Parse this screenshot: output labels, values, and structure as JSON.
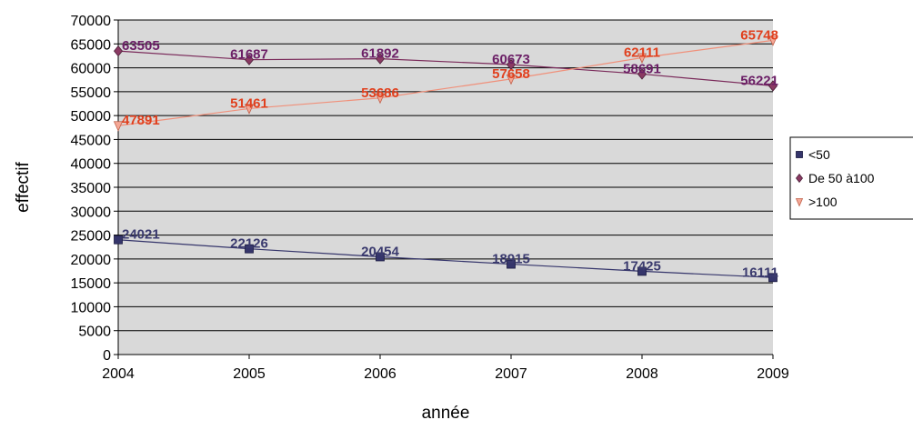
{
  "chart_data": {
    "type": "line",
    "title": "",
    "xlabel": "année",
    "ylabel": "effectif",
    "x": [
      2004,
      2005,
      2006,
      2007,
      2008,
      2009
    ],
    "ylim": [
      0,
      70000
    ],
    "ytick_step": 5000,
    "grid": true,
    "legend_position": "right",
    "plot_background": "#d9d9d9",
    "series": [
      {
        "name": "<50",
        "values": [
          24021,
          22126,
          20454,
          18915,
          17425,
          16111
        ],
        "line_color": "#35356b",
        "marker": "square",
        "marker_color": "#35356b",
        "label_color": "#3a3a6e"
      },
      {
        "name": "De 50 à100",
        "values": [
          63505,
          61687,
          61892,
          60673,
          58691,
          56221
        ],
        "line_color": "#7a2a5a",
        "marker": "diamond",
        "marker_color": "#8b3a63",
        "label_color": "#6b1f66"
      },
      {
        "name": ">100",
        "values": [
          47891,
          51461,
          53686,
          57658,
          62111,
          65748
        ],
        "line_color": "#f0907a",
        "marker": "triangle-down",
        "marker_color": "#f5a896",
        "label_color": "#e0401e"
      }
    ]
  }
}
